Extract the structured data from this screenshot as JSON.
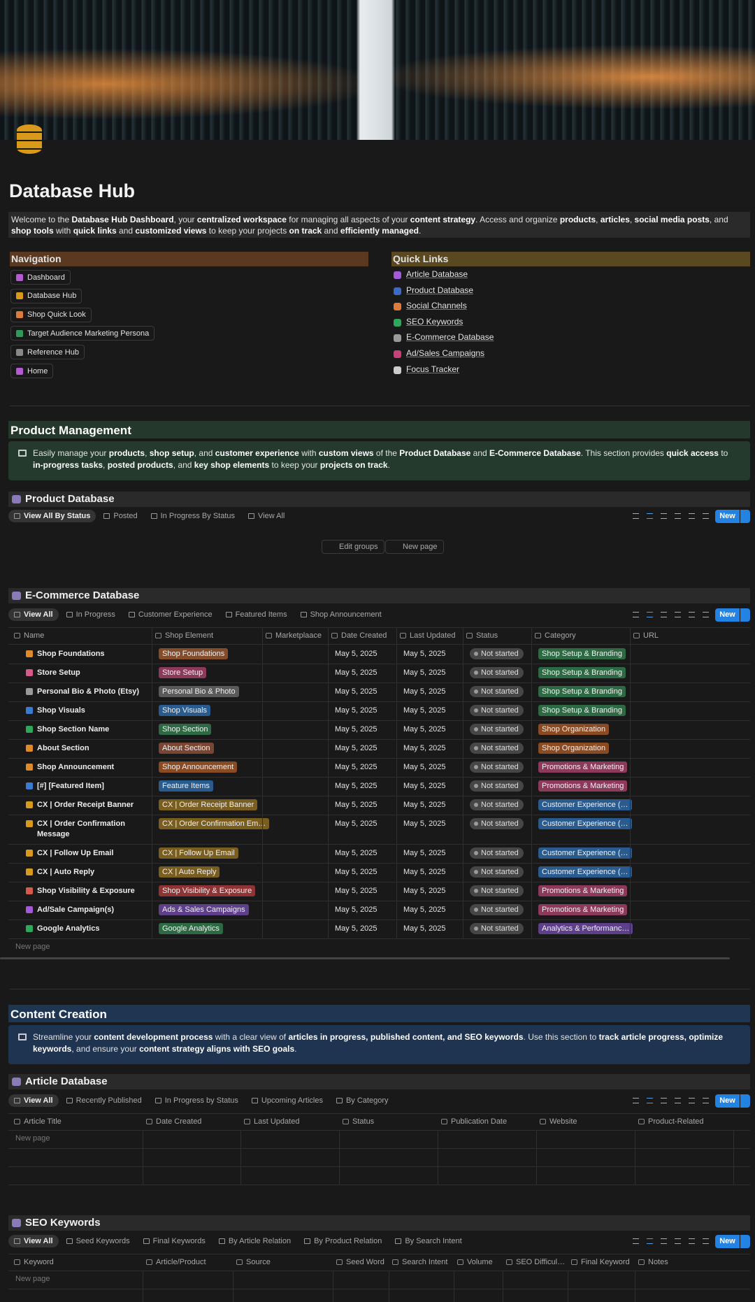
{
  "header": {
    "title": "Database Hub",
    "intro": [
      {
        "t": "Welcome to the "
      },
      {
        "t": "Database Hub Dashboard",
        "b": true
      },
      {
        "t": ", your "
      },
      {
        "t": "centralized workspace",
        "b": true
      },
      {
        "t": " for managing all aspects of your "
      },
      {
        "t": "content strategy",
        "b": true
      },
      {
        "t": ". Access and organize "
      },
      {
        "t": "products",
        "b": true
      },
      {
        "t": ", "
      },
      {
        "t": "articles",
        "b": true
      },
      {
        "t": ", "
      },
      {
        "t": "social media posts",
        "b": true
      },
      {
        "t": ", and "
      },
      {
        "t": "shop tools",
        "b": true
      },
      {
        "t": " with "
      },
      {
        "t": "quick links",
        "b": true
      },
      {
        "t": " and "
      },
      {
        "t": "customized views",
        "b": true
      },
      {
        "t": " to keep your projects "
      },
      {
        "t": "on track",
        "b": true
      },
      {
        "t": " and "
      },
      {
        "t": "efficiently managed",
        "b": true
      },
      {
        "t": "."
      }
    ]
  },
  "navigation": {
    "title": "Navigation",
    "items": [
      "Dashboard",
      "Database Hub",
      "Shop Quick Look",
      "Target Audience Marketing Persona",
      "Reference Hub",
      "Home"
    ]
  },
  "quick_links": {
    "title": "Quick Links",
    "items": [
      "Article Database",
      "Product Database",
      "Social Channels",
      "SEO Keywords",
      "E-Commerce Database",
      "Ad/Sales Campaigns",
      "Focus Tracker"
    ]
  },
  "product_management": {
    "title": "Product Management",
    "callout": [
      {
        "t": "Easily manage your "
      },
      {
        "t": "products",
        "b": true
      },
      {
        "t": ", "
      },
      {
        "t": "shop setup",
        "b": true
      },
      {
        "t": ", and "
      },
      {
        "t": "customer experience",
        "b": true
      },
      {
        "t": " with "
      },
      {
        "t": "custom views",
        "b": true
      },
      {
        "t": " of the "
      },
      {
        "t": "Product Database",
        "b": true
      },
      {
        "t": " and "
      },
      {
        "t": "E-Commerce Database",
        "b": true
      },
      {
        "t": ". This section provides "
      },
      {
        "t": "quick access",
        "b": true
      },
      {
        "t": " to "
      },
      {
        "t": "in-progress tasks",
        "b": true
      },
      {
        "t": ", "
      },
      {
        "t": "posted products",
        "b": true
      },
      {
        "t": ", and "
      },
      {
        "t": "key shop elements",
        "b": true
      },
      {
        "t": " to keep your "
      },
      {
        "t": "projects on track",
        "b": true
      },
      {
        "t": "."
      }
    ]
  },
  "product_database": {
    "title": "Product Database",
    "tabs": [
      "View All By Status",
      "Posted",
      "In Progress By Status",
      "View All"
    ],
    "new": "New",
    "edit_groups": "Edit groups",
    "new_page": "New page"
  },
  "ecommerce_database": {
    "title": "E-Commerce Database",
    "tabs": [
      "View All",
      "In Progress",
      "Customer Experience",
      "Featured Items",
      "Shop Announcement"
    ],
    "new": "New",
    "columns": [
      "Name",
      "Shop Element",
      "Marketplaace",
      "Date Created",
      "Last Updated",
      "Status",
      "Category",
      "URL"
    ],
    "rows": [
      {
        "name": "Shop Foundations",
        "element": "Shop Foundations",
        "element_color": "#854c2a",
        "date_created": "May 5, 2025",
        "last_updated": "May 5, 2025",
        "status": "Not started",
        "category": "Shop Setup & Branding",
        "category_color": "#2d6a43"
      },
      {
        "name": "Store Setup",
        "element": "Store Setup",
        "element_color": "#8c3a5c",
        "date_created": "May 5, 2025",
        "last_updated": "May 5, 2025",
        "status": "Not started",
        "category": "Shop Setup & Branding",
        "category_color": "#2d6a43"
      },
      {
        "name": "Personal Bio & Photo (Etsy)",
        "element": "Personal Bio & Photo",
        "element_color": "#5a5a5a",
        "date_created": "May 5, 2025",
        "last_updated": "May 5, 2025",
        "status": "Not started",
        "category": "Shop Setup & Branding",
        "category_color": "#2d6a43"
      },
      {
        "name": "Shop Visuals",
        "element": "Shop Visuals",
        "element_color": "#2a5b8e",
        "date_created": "May 5, 2025",
        "last_updated": "May 5, 2025",
        "status": "Not started",
        "category": "Shop Setup & Branding",
        "category_color": "#2d6a43"
      },
      {
        "name": "Shop Section Name",
        "element": "Shop Section",
        "element_color": "#2d6a43",
        "date_created": "May 5, 2025",
        "last_updated": "May 5, 2025",
        "status": "Not started",
        "category": "Shop Organization",
        "category_color": "#8a4a22"
      },
      {
        "name": "About Section",
        "element": "About Section",
        "element_color": "#7a4634",
        "date_created": "May 5, 2025",
        "last_updated": "May 5, 2025",
        "status": "Not started",
        "category": "Shop Organization",
        "category_color": "#8a4a22"
      },
      {
        "name": "Shop Announcement",
        "element": "Shop Announcement",
        "element_color": "#8a4a22",
        "date_created": "May 5, 2025",
        "last_updated": "May 5, 2025",
        "status": "Not started",
        "category": "Promotions & Marketing",
        "category_color": "#8c3a5c"
      },
      {
        "name": "[#] [Featured Item]",
        "element": "Feature Items",
        "element_color": "#2a5b8e",
        "date_created": "May 5, 2025",
        "last_updated": "May 5, 2025",
        "status": "Not started",
        "category": "Promotions & Marketing",
        "category_color": "#8c3a5c"
      },
      {
        "name": "CX | Order Receipt Banner",
        "element": "CX | Order Receipt Banner",
        "element_color": "#7a5e1f",
        "date_created": "May 5, 2025",
        "last_updated": "May 5, 2025",
        "status": "Not started",
        "category": "Customer Experience (…",
        "category_color": "#2a5b8e"
      },
      {
        "name": "CX | Order Confirmation Message",
        "element": "CX | Order Confirmation Em…",
        "element_color": "#7a5e1f",
        "date_created": "May 5, 2025",
        "last_updated": "May 5, 2025",
        "status": "Not started",
        "category": "Customer Experience (…",
        "category_color": "#2a5b8e"
      },
      {
        "name": "CX | Follow Up Email",
        "element": "CX | Follow Up Email",
        "element_color": "#7a5e1f",
        "date_created": "May 5, 2025",
        "last_updated": "May 5, 2025",
        "status": "Not started",
        "category": "Customer Experience (…",
        "category_color": "#2a5b8e"
      },
      {
        "name": "CX | Auto Reply",
        "element": "CX | Auto Reply",
        "element_color": "#7a5e1f",
        "date_created": "May 5, 2025",
        "last_updated": "May 5, 2025",
        "status": "Not started",
        "category": "Customer Experience (…",
        "category_color": "#2a5b8e"
      },
      {
        "name": "Shop Visibility & Exposure",
        "element": "Shop Visibility & Exposure",
        "element_color": "#8e3434",
        "date_created": "May 5, 2025",
        "last_updated": "May 5, 2025",
        "status": "Not started",
        "category": "Promotions & Marketing",
        "category_color": "#8c3a5c"
      },
      {
        "name": "Ad/Sale Campaign(s)",
        "element": "Ads & Sales Campaigns",
        "element_color": "#5d3f8a",
        "date_created": "May 5, 2025",
        "last_updated": "May 5, 2025",
        "status": "Not started",
        "category": "Promotions & Marketing",
        "category_color": "#8c3a5c"
      },
      {
        "name": "Google Analytics",
        "element": "Google Analytics",
        "element_color": "#2d6a43",
        "date_created": "May 5, 2025",
        "last_updated": "May 5, 2025",
        "status": "Not started",
        "category": "Analytics & Performanc…",
        "category_color": "#5d3f8a"
      }
    ],
    "new_page": "New page"
  },
  "content_creation": {
    "title": "Content Creation",
    "callout": [
      {
        "t": "Streamline your "
      },
      {
        "t": "content development process",
        "b": true
      },
      {
        "t": " with a clear view of "
      },
      {
        "t": "articles in progress, published content, and SEO keywords",
        "b": true
      },
      {
        "t": ". Use this section to "
      },
      {
        "t": "track article progress, optimize keywords",
        "b": true
      },
      {
        "t": ", and ensure your "
      },
      {
        "t": "content strategy aligns with SEO goals",
        "b": true
      },
      {
        "t": "."
      }
    ]
  },
  "article_database": {
    "title": "Article Database",
    "tabs": [
      "View All",
      "Recently Published",
      "In Progress by Status",
      "Upcoming Articles",
      "By Category"
    ],
    "new": "New",
    "columns": [
      "Article Title",
      "Date Created",
      "Last Updated",
      "Status",
      "Publication Date",
      "Website",
      "Product-Related"
    ],
    "new_page": "New page"
  },
  "seo_keywords": {
    "title": "SEO Keywords",
    "tabs": [
      "View All",
      "Seed Keywords",
      "Final Keywords",
      "By Article Relation",
      "By Product Relation",
      "By Search Intent"
    ],
    "new": "New",
    "columns": [
      "Keyword",
      "Article/Product",
      "Source",
      "Seed Word",
      "Search Intent",
      "Volume",
      "SEO Difficul…",
      "Final Keyword",
      "Notes"
    ],
    "new_page": "New page"
  }
}
